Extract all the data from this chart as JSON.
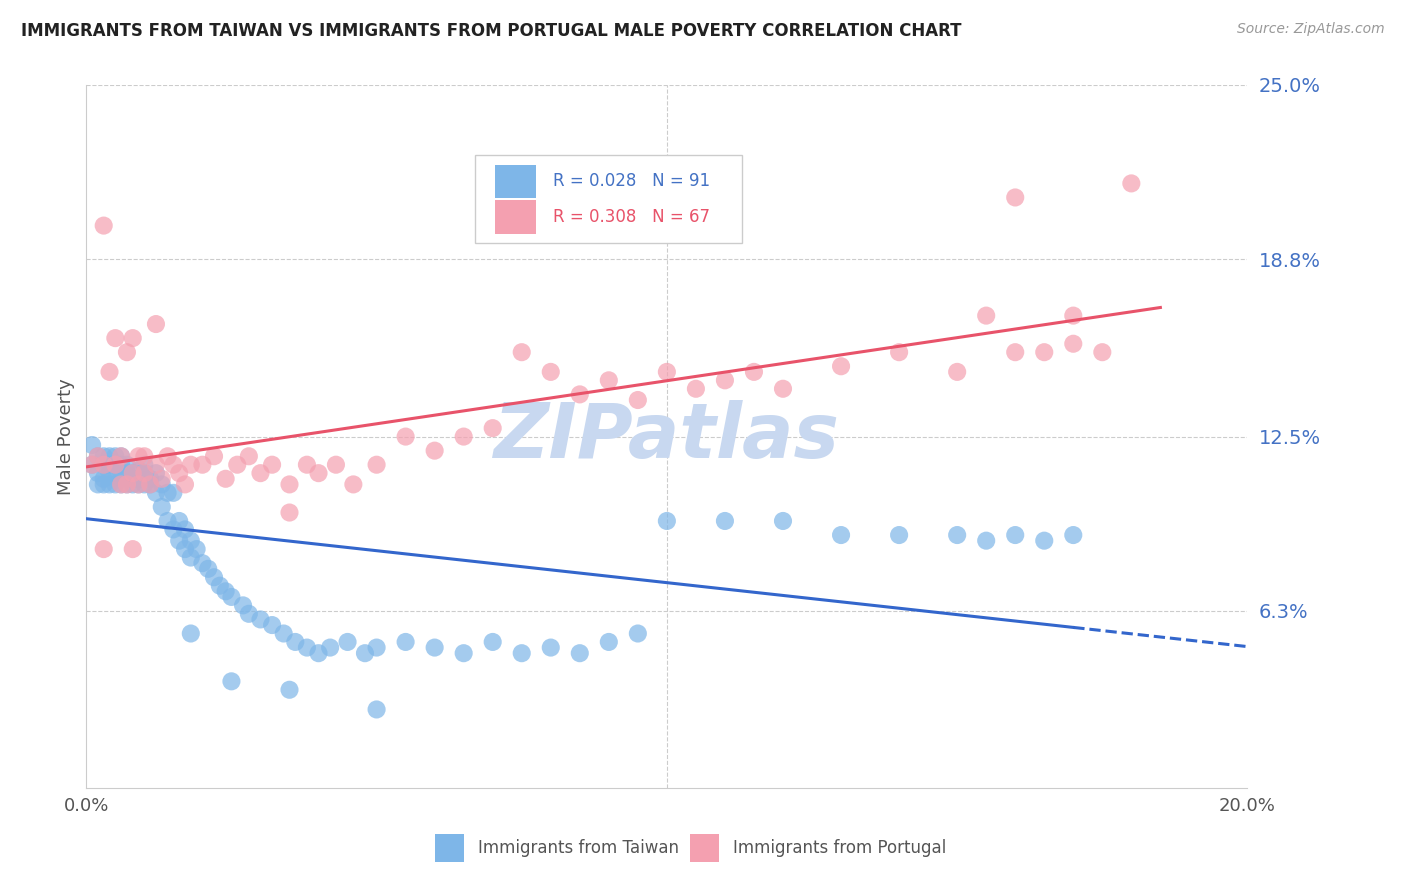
{
  "title": "IMMIGRANTS FROM TAIWAN VS IMMIGRANTS FROM PORTUGAL MALE POVERTY CORRELATION CHART",
  "source": "Source: ZipAtlas.com",
  "ylabel": "Male Poverty",
  "xlim": [
    0.0,
    0.2
  ],
  "ylim": [
    0.0,
    0.25
  ],
  "xtick_positions": [
    0.0,
    0.05,
    0.1,
    0.15,
    0.2
  ],
  "xtick_labels": [
    "0.0%",
    "",
    "",
    "",
    "20.0%"
  ],
  "ytick_right": [
    0.063,
    0.125,
    0.188,
    0.25
  ],
  "ytick_right_labels": [
    "6.3%",
    "12.5%",
    "18.8%",
    "25.0%"
  ],
  "taiwan_R": 0.028,
  "taiwan_N": 91,
  "portugal_R": 0.308,
  "portugal_N": 67,
  "taiwan_color": "#7EB6E8",
  "portugal_color": "#F4A0B0",
  "taiwan_line_color": "#3366CC",
  "portugal_line_color": "#E8536A",
  "watermark": "ZIPatlas",
  "watermark_color": "#C8D8F0",
  "legend_label_taiwan": "Immigrants from Taiwan",
  "legend_label_portugal": "Immigrants from Portugal",
  "taiwan_x": [
    0.001,
    0.001,
    0.002,
    0.002,
    0.002,
    0.003,
    0.003,
    0.003,
    0.003,
    0.004,
    0.004,
    0.004,
    0.004,
    0.005,
    0.005,
    0.005,
    0.005,
    0.006,
    0.006,
    0.006,
    0.006,
    0.007,
    0.007,
    0.007,
    0.008,
    0.008,
    0.008,
    0.009,
    0.009,
    0.009,
    0.01,
    0.01,
    0.01,
    0.011,
    0.011,
    0.012,
    0.012,
    0.013,
    0.013,
    0.014,
    0.014,
    0.015,
    0.015,
    0.016,
    0.016,
    0.017,
    0.017,
    0.018,
    0.018,
    0.019,
    0.02,
    0.021,
    0.022,
    0.023,
    0.024,
    0.025,
    0.027,
    0.028,
    0.03,
    0.032,
    0.034,
    0.036,
    0.038,
    0.04,
    0.042,
    0.045,
    0.048,
    0.05,
    0.055,
    0.06,
    0.065,
    0.07,
    0.075,
    0.08,
    0.085,
    0.09,
    0.095,
    0.1,
    0.11,
    0.12,
    0.13,
    0.14,
    0.15,
    0.155,
    0.16,
    0.165,
    0.17,
    0.018,
    0.025,
    0.035,
    0.05
  ],
  "taiwan_y": [
    0.122,
    0.115,
    0.118,
    0.112,
    0.108,
    0.118,
    0.115,
    0.108,
    0.11,
    0.118,
    0.112,
    0.108,
    0.115,
    0.118,
    0.112,
    0.108,
    0.115,
    0.118,
    0.112,
    0.115,
    0.108,
    0.115,
    0.112,
    0.108,
    0.112,
    0.11,
    0.108,
    0.113,
    0.11,
    0.108,
    0.112,
    0.108,
    0.115,
    0.11,
    0.108,
    0.112,
    0.105,
    0.108,
    0.1,
    0.105,
    0.095,
    0.105,
    0.092,
    0.095,
    0.088,
    0.092,
    0.085,
    0.088,
    0.082,
    0.085,
    0.08,
    0.078,
    0.075,
    0.072,
    0.07,
    0.068,
    0.065,
    0.062,
    0.06,
    0.058,
    0.055,
    0.052,
    0.05,
    0.048,
    0.05,
    0.052,
    0.048,
    0.05,
    0.052,
    0.05,
    0.048,
    0.052,
    0.048,
    0.05,
    0.048,
    0.052,
    0.055,
    0.095,
    0.095,
    0.095,
    0.09,
    0.09,
    0.09,
    0.088,
    0.09,
    0.088,
    0.09,
    0.055,
    0.038,
    0.035,
    0.028
  ],
  "portugal_x": [
    0.001,
    0.002,
    0.003,
    0.003,
    0.004,
    0.005,
    0.005,
    0.006,
    0.006,
    0.007,
    0.007,
    0.008,
    0.008,
    0.009,
    0.009,
    0.01,
    0.01,
    0.011,
    0.012,
    0.013,
    0.014,
    0.015,
    0.016,
    0.017,
    0.018,
    0.02,
    0.022,
    0.024,
    0.026,
    0.028,
    0.03,
    0.032,
    0.035,
    0.038,
    0.04,
    0.043,
    0.046,
    0.05,
    0.055,
    0.06,
    0.065,
    0.07,
    0.075,
    0.08,
    0.085,
    0.09,
    0.095,
    0.1,
    0.105,
    0.11,
    0.115,
    0.12,
    0.13,
    0.14,
    0.15,
    0.16,
    0.17,
    0.175,
    0.18,
    0.003,
    0.008,
    0.012,
    0.035,
    0.16,
    0.17,
    0.155,
    0.165
  ],
  "portugal_y": [
    0.115,
    0.118,
    0.2,
    0.115,
    0.148,
    0.16,
    0.115,
    0.118,
    0.108,
    0.155,
    0.108,
    0.16,
    0.112,
    0.118,
    0.108,
    0.118,
    0.112,
    0.108,
    0.115,
    0.11,
    0.118,
    0.115,
    0.112,
    0.108,
    0.115,
    0.115,
    0.118,
    0.11,
    0.115,
    0.118,
    0.112,
    0.115,
    0.108,
    0.115,
    0.112,
    0.115,
    0.108,
    0.115,
    0.125,
    0.12,
    0.125,
    0.128,
    0.155,
    0.148,
    0.14,
    0.145,
    0.138,
    0.148,
    0.142,
    0.145,
    0.148,
    0.142,
    0.15,
    0.155,
    0.148,
    0.155,
    0.158,
    0.155,
    0.215,
    0.085,
    0.085,
    0.165,
    0.098,
    0.21,
    0.168,
    0.168,
    0.155
  ]
}
